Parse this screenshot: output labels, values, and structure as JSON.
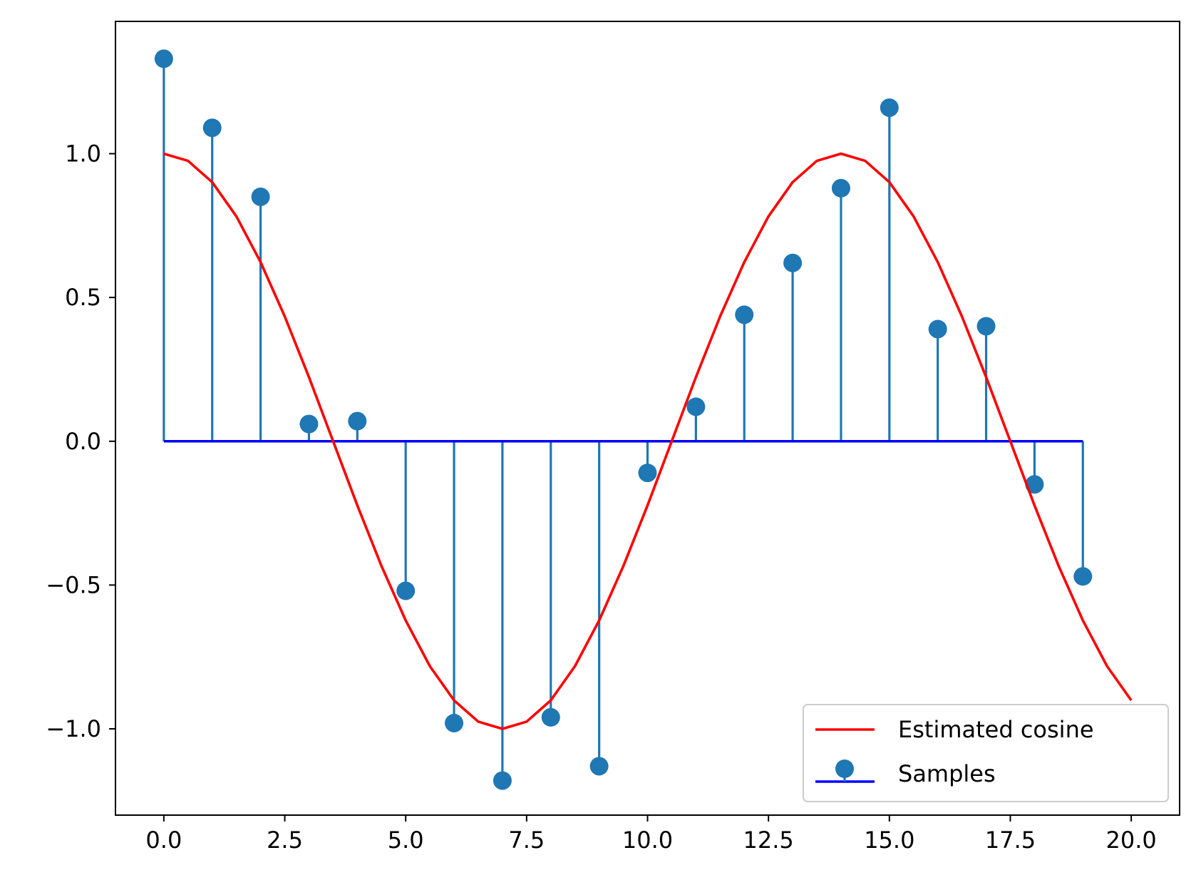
{
  "chart_data": {
    "type": "line",
    "title": "",
    "xlabel": "",
    "ylabel": "",
    "xlim": [
      -1.0,
      21.0
    ],
    "ylim": [
      -1.3,
      1.46
    ],
    "grid": false,
    "x_ticks": [
      0.0,
      2.5,
      5.0,
      7.5,
      10.0,
      12.5,
      15.0,
      17.5,
      20.0
    ],
    "x_tick_labels": [
      "0.0",
      "2.5",
      "5.0",
      "7.5",
      "10.0",
      "12.5",
      "15.0",
      "17.5",
      "20.0"
    ],
    "y_ticks": [
      -1.0,
      -0.5,
      0.0,
      0.5,
      1.0
    ],
    "y_tick_labels": [
      "−1.0",
      "−0.5",
      "0.0",
      "0.5",
      "1.0"
    ],
    "legend_position": "lower-right",
    "series": [
      {
        "name": "Estimated cosine",
        "type": "line",
        "color": "#ff0000",
        "x": [
          0.0,
          0.5,
          1.0,
          1.5,
          2.0,
          2.5,
          3.0,
          3.5,
          4.0,
          4.5,
          5.0,
          5.5,
          6.0,
          6.5,
          7.0,
          7.5,
          8.0,
          8.5,
          9.0,
          9.5,
          10.0,
          10.5,
          11.0,
          11.5,
          12.0,
          12.5,
          13.0,
          13.5,
          14.0,
          14.5,
          15.0,
          15.5,
          16.0,
          16.5,
          17.0,
          17.5,
          18.0,
          18.5,
          19.0,
          19.5,
          20.0
        ],
        "y": [
          1.0,
          0.975,
          0.901,
          0.782,
          0.623,
          0.434,
          0.223,
          0.0,
          -0.223,
          -0.434,
          -0.623,
          -0.782,
          -0.901,
          -0.975,
          -1.0,
          -0.975,
          -0.901,
          -0.782,
          -0.623,
          -0.434,
          -0.223,
          0.0,
          0.223,
          0.434,
          0.623,
          0.782,
          0.901,
          0.975,
          1.0,
          0.975,
          0.901,
          0.782,
          0.623,
          0.434,
          0.223,
          0.0,
          -0.223,
          -0.434,
          -0.623,
          -0.782,
          -0.901
        ]
      },
      {
        "name": "Samples",
        "type": "stem",
        "marker_color": "#1f77b4",
        "baseline_color": "#0000ff",
        "x": [
          0,
          1,
          2,
          3,
          4,
          5,
          6,
          7,
          8,
          9,
          10,
          11,
          12,
          13,
          14,
          15,
          16,
          17,
          18,
          19
        ],
        "y": [
          1.33,
          1.09,
          0.85,
          0.06,
          0.07,
          -0.52,
          -0.98,
          -1.18,
          -0.96,
          -1.13,
          -0.11,
          0.12,
          0.44,
          0.62,
          0.88,
          1.16,
          0.39,
          0.4,
          -0.15,
          -0.47
        ]
      }
    ]
  }
}
